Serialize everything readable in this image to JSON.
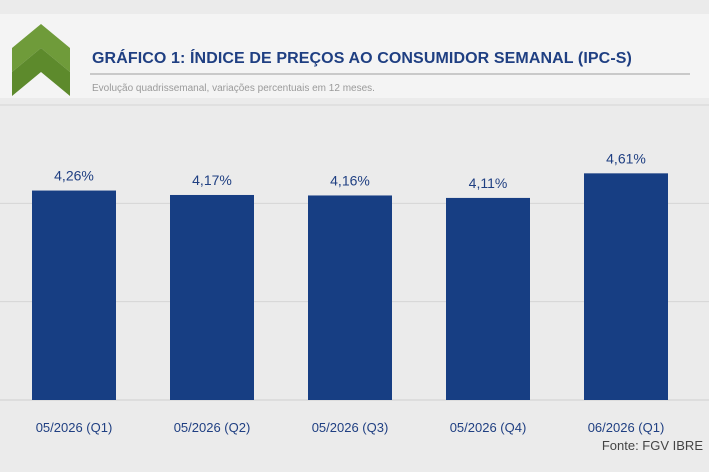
{
  "header": {
    "title": "GRÁFICO 1: ÍNDICE DE PREÇOS AO CONSUMIDOR SEMANAL (IPC-S)",
    "subtitle": "Evolução quadrissemanal, variações percentuais em 12 meses."
  },
  "source": "Fonte: FGV IBRE",
  "colors": {
    "bar": "#173e83",
    "logo_green": "#6f9b3a",
    "title": "#1f3f82",
    "data_label": "#1f3f82",
    "tick_label": "#1f3f82"
  },
  "chart_data": {
    "type": "bar",
    "title": "GRÁFICO 1: ÍNDICE DE PREÇOS AO CONSUMIDOR SEMANAL (IPC-S)",
    "subtitle": "Evolução quadrissemanal, variações percentuais em 12 meses.",
    "categories": [
      "05/2026 (Q1)",
      "05/2026 (Q2)",
      "05/2026 (Q3)",
      "05/2026 (Q4)",
      "06/2026 (Q1)"
    ],
    "values": [
      4.26,
      4.17,
      4.16,
      4.11,
      4.61
    ],
    "data_labels": [
      "4,26%",
      "4,17%",
      "4,16%",
      "4,11%",
      "4,61%"
    ],
    "xlabel": "",
    "ylabel": "",
    "ylim": [
      0,
      6
    ],
    "grid": true,
    "legend": "none"
  }
}
